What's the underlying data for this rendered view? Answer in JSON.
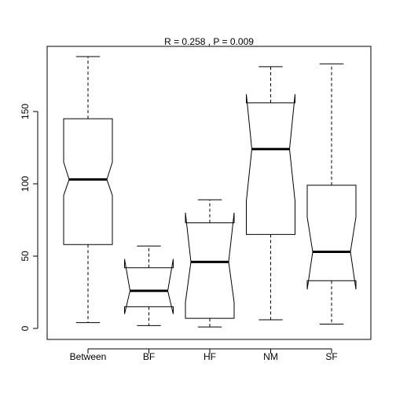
{
  "chart_data": {
    "type": "boxplot",
    "title": "R =  0.258 ,  P =  0.009",
    "xlabel": "",
    "ylabel": "",
    "ylim": [
      -8,
      198
    ],
    "y_ticks": [
      0,
      50,
      100,
      150
    ],
    "notched": true,
    "categories": [
      "Between",
      "BF",
      "HF",
      "NM",
      "SF"
    ],
    "boxes": [
      {
        "name": "Between",
        "whisker_low": 4,
        "q1": 58,
        "median": 103,
        "q3": 145,
        "whisker_high": 188,
        "notch_low": 92,
        "notch_high": 115
      },
      {
        "name": "BF",
        "whisker_low": 2,
        "q1": 15,
        "median": 26,
        "q3": 42,
        "whisker_high": 57,
        "notch_low": 10,
        "notch_high": 48
      },
      {
        "name": "HF",
        "whisker_low": 1,
        "q1": 7,
        "median": 46,
        "q3": 73,
        "whisker_high": 89,
        "notch_low": 18,
        "notch_high": 80
      },
      {
        "name": "NM",
        "whisker_low": 6,
        "q1": 65,
        "median": 124,
        "q3": 156,
        "whisker_high": 181,
        "notch_low": 88,
        "notch_high": 162
      },
      {
        "name": "SF",
        "whisker_low": 3,
        "q1": 33,
        "median": 53,
        "q3": 99,
        "whisker_high": 183,
        "notch_low": 27,
        "notch_high": 77
      }
    ]
  }
}
